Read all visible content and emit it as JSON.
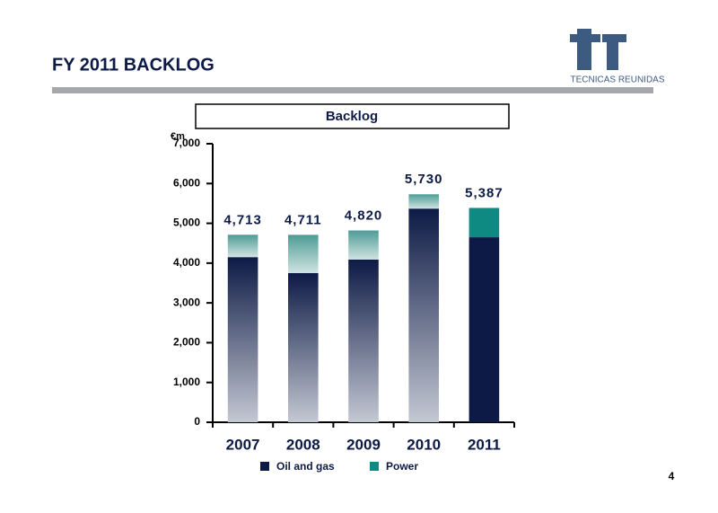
{
  "slide": {
    "title": "FY 2011 BACKLOG",
    "logo_text": "TECNICAS REUNIDAS",
    "page_number": "4"
  },
  "chart_data": {
    "type": "stacked_bar",
    "title": "Backlog",
    "y_label": "€m",
    "categories": [
      "2007",
      "2008",
      "2009",
      "2010",
      "2011"
    ],
    "series": [
      {
        "name": "Oil and gas",
        "color": "#0d1a45",
        "values": [
          4150,
          3750,
          4090,
          5370,
          4650
        ]
      },
      {
        "name": "Power",
        "color": "#0e8a83",
        "values": [
          563,
          961,
          730,
          360,
          737
        ]
      }
    ],
    "totals": {
      "values": [
        4713,
        4711,
        4820,
        5730,
        5387
      ],
      "value_labels": [
        "4,713",
        "4,711",
        "4,820",
        "5,730",
        "5,387"
      ]
    },
    "ylim": [
      0,
      7000
    ],
    "yticks": [
      {
        "value": 0,
        "label": "0"
      },
      {
        "value": 1000,
        "label": "1,000"
      },
      {
        "value": 2000,
        "label": "2,000"
      },
      {
        "value": 3000,
        "label": "3,000"
      },
      {
        "value": 4000,
        "label": "4,000"
      },
      {
        "value": 5000,
        "label": "5,000"
      },
      {
        "value": 6000,
        "label": "6,000"
      },
      {
        "value": 7000,
        "label": "7,000"
      }
    ],
    "legend": "bottom"
  }
}
